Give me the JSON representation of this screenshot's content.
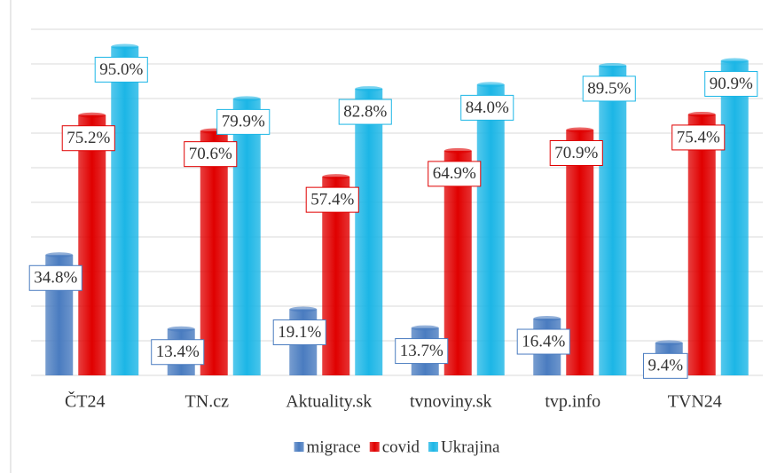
{
  "chart_data": {
    "type": "bar",
    "categories": [
      "ČT24",
      "TN.cz",
      "Aktuality.sk",
      "tvnoviny.sk",
      "tvp.info",
      "TVN24"
    ],
    "series": [
      {
        "name": "migrace",
        "color": "#4a7cc0",
        "values": [
          34.8,
          13.4,
          19.1,
          13.7,
          16.4,
          9.4
        ],
        "value_labels": [
          "34.8%",
          "13.4%",
          "19.1%",
          "13.7%",
          "16.4%",
          "9.4%"
        ]
      },
      {
        "name": "covid",
        "color": "#e00000",
        "values": [
          75.2,
          70.6,
          57.4,
          64.9,
          70.9,
          75.4
        ],
        "value_labels": [
          "75.2%",
          "70.6%",
          "57.4%",
          "64.9%",
          "70.9%",
          "75.4%"
        ]
      },
      {
        "name": "Ukrajina",
        "color": "#1cb6e6",
        "values": [
          95.0,
          79.9,
          82.8,
          84.0,
          89.5,
          90.9
        ],
        "value_labels": [
          "95.0%",
          "79.9%",
          "82.8%",
          "84.0%",
          "89.5%",
          "90.9%"
        ]
      }
    ],
    "ylim": [
      0,
      100
    ],
    "yticks": [
      0,
      10,
      20,
      30,
      40,
      50,
      60,
      70,
      80,
      90,
      100
    ],
    "grid": true,
    "legend": "bottom"
  }
}
